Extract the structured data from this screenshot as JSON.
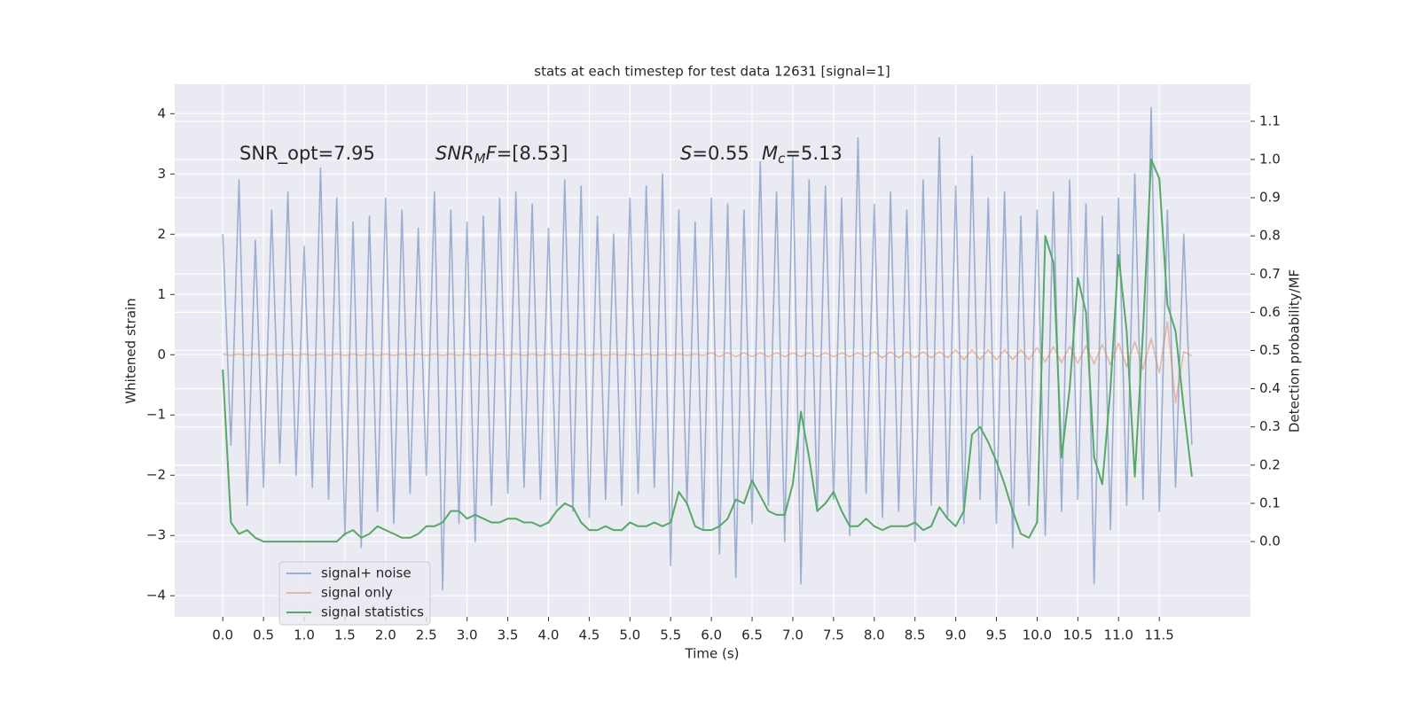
{
  "chart_data": {
    "type": "line",
    "title": "stats at each timestep for test data 12631 [signal=1]",
    "xlabel": "Time (s)",
    "ylabel": "Whitened strain",
    "y2label": "Detection probability/MF",
    "annotations": [
      [
        {
          "text": "SNR_opt=7.95",
          "style": "normal"
        }
      ],
      [
        {
          "text": "SNR",
          "style": "italic"
        },
        {
          "text": "M",
          "style": "sub"
        },
        {
          "text": "F",
          "style": "italic"
        },
        {
          "text": "=[8.53]",
          "style": "normal"
        }
      ],
      [
        {
          "text": "S",
          "style": "italic"
        },
        {
          "text": "=0.55",
          "style": "normal"
        }
      ],
      [
        {
          "text": "M",
          "style": "italic"
        },
        {
          "text": "c",
          "style": "sub"
        },
        {
          "text": "=5.13",
          "style": "normal"
        }
      ]
    ],
    "xlim": [
      -0.59,
      12.62
    ],
    "ylim": [
      -4.35,
      4.49
    ],
    "y2lim": [
      -0.197,
      1.197
    ],
    "grid": true,
    "legend": "lower left",
    "xticks": [
      {
        "value": 0,
        "label": "0.0"
      },
      0.5,
      {
        "value": 1,
        "label": "1.0"
      },
      1.5,
      {
        "value": 2,
        "label": "2.0"
      },
      2.5,
      {
        "value": 3,
        "label": "3.0"
      },
      3.5,
      {
        "value": 4,
        "label": "4.0"
      },
      4.5,
      {
        "value": 5,
        "label": "5.0"
      },
      5.5,
      {
        "value": 6,
        "label": "6.0"
      },
      6.5,
      {
        "value": 7,
        "label": "7.0"
      },
      7.5,
      {
        "value": 8,
        "label": "8.0"
      },
      8.5,
      {
        "value": 9,
        "label": "9.0"
      },
      9.5,
      {
        "value": 10,
        "label": "10.0"
      },
      10.5,
      {
        "value": 11,
        "label": "11.0"
      },
      11.5
    ],
    "yticks": [
      {
        "value": -4,
        "label": "−4"
      },
      {
        "value": -3,
        "label": "−3"
      },
      {
        "value": -2,
        "label": "−2"
      },
      {
        "value": -1,
        "label": "−1"
      },
      0,
      1,
      2,
      3,
      4
    ],
    "y2ticks": [
      {
        "value": 0,
        "label": "0.0"
      },
      0.1,
      0.2,
      0.3,
      0.4,
      0.5,
      0.6,
      0.7,
      0.8,
      0.9,
      {
        "value": 1,
        "label": "1.0"
      },
      1.1
    ],
    "x": [
      0,
      0.1,
      0.2,
      0.3,
      0.4,
      0.5,
      0.6,
      0.7,
      0.8,
      0.9,
      1,
      1.1,
      1.2,
      1.3,
      1.4,
      1.5,
      1.6,
      1.7,
      1.8,
      1.9,
      2,
      2.1,
      2.2,
      2.3,
      2.4,
      2.5,
      2.6,
      2.7,
      2.8,
      2.9,
      3,
      3.1,
      3.2,
      3.3,
      3.4,
      3.5,
      3.6,
      3.7,
      3.8,
      3.9,
      4,
      4.1,
      4.2,
      4.3,
      4.4,
      4.5,
      4.6,
      4.7,
      4.8,
      4.9,
      5,
      5.1,
      5.2,
      5.3,
      5.4,
      5.5,
      5.6,
      5.7,
      5.8,
      5.9,
      6,
      6.1,
      6.2,
      6.3,
      6.4,
      6.5,
      6.6,
      6.7,
      6.8,
      6.9,
      7,
      7.1,
      7.2,
      7.3,
      7.4,
      7.5,
      7.6,
      7.7,
      7.8,
      7.9,
      8,
      8.1,
      8.2,
      8.3,
      8.4,
      8.5,
      8.6,
      8.7,
      8.8,
      8.9,
      9,
      9.1,
      9.2,
      9.3,
      9.4,
      9.5,
      9.6,
      9.7,
      9.8,
      9.9,
      10,
      10.1,
      10.2,
      10.3,
      10.4,
      10.5,
      10.6,
      10.7,
      10.8,
      10.9,
      11,
      11.1,
      11.2,
      11.3,
      11.4,
      11.5,
      11.6,
      11.7,
      11.8,
      11.9
    ],
    "series": [
      {
        "name": "signal+ noise",
        "color": "#4c72b0",
        "axis": "y",
        "values": [
          2.0,
          -1.5,
          2.9,
          -2.5,
          1.9,
          -2.2,
          2.4,
          -1.8,
          2.7,
          -2.0,
          1.8,
          -2.2,
          3.1,
          -2.4,
          2.6,
          -3.0,
          2.2,
          -3.2,
          2.3,
          -2.6,
          2.6,
          -2.8,
          2.4,
          -2.3,
          2.1,
          -2.0,
          2.7,
          -3.9,
          2.4,
          -2.8,
          2.2,
          -3.1,
          2.3,
          -2.5,
          2.6,
          -2.3,
          2.7,
          -2.2,
          2.5,
          -2.4,
          2.1,
          -2.5,
          2.9,
          -2.6,
          2.8,
          -2.7,
          2.3,
          -2.4,
          2.0,
          -2.5,
          2.6,
          -2.3,
          2.8,
          -2.2,
          3.0,
          -3.5,
          2.4,
          -2.5,
          2.2,
          -2.9,
          2.6,
          -3.3,
          2.5,
          -3.7,
          2.4,
          -2.8,
          3.2,
          -2.5,
          2.7,
          -3.1,
          3.3,
          -3.8,
          2.9,
          -2.6,
          2.8,
          -2.4,
          2.6,
          -3.0,
          3.6,
          -2.3,
          2.5,
          -2.7,
          2.7,
          -2.6,
          2.4,
          -3.1,
          2.9,
          -2.5,
          3.6,
          -2.7,
          2.8,
          -2.8,
          3.3,
          -2.4,
          2.6,
          -2.8,
          2.7,
          -3.2,
          2.3,
          -2.5,
          2.4,
          -3.0,
          2.7,
          -2.6,
          2.9,
          -2.4,
          2.5,
          -3.8,
          2.3,
          -2.9,
          2.6,
          -2.5,
          3.0,
          -2.4,
          4.1,
          -2.6,
          2.4,
          -2.2,
          2.0,
          -1.5
        ]
      },
      {
        "name": "signal only",
        "color": "#dd8452",
        "axis": "y",
        "values": [
          0.01,
          -0.01,
          0.01,
          -0.01,
          0.01,
          -0.01,
          0.01,
          -0.01,
          0.01,
          -0.01,
          0.01,
          -0.01,
          0.01,
          -0.01,
          0.01,
          -0.01,
          0.01,
          -0.01,
          0.01,
          -0.01,
          0.01,
          -0.01,
          0.01,
          -0.01,
          0.01,
          -0.01,
          0.01,
          -0.01,
          0.01,
          -0.01,
          0.01,
          -0.01,
          0.01,
          -0.01,
          0.01,
          -0.01,
          0.01,
          -0.01,
          0.01,
          -0.01,
          0.01,
          -0.01,
          0.01,
          -0.01,
          0.01,
          -0.01,
          0.01,
          -0.01,
          0.01,
          -0.01,
          0.01,
          -0.01,
          0.01,
          -0.01,
          0.01,
          -0.01,
          0.01,
          -0.01,
          0.01,
          -0.01,
          0.03,
          -0.03,
          0.03,
          -0.03,
          0.03,
          -0.03,
          0.03,
          -0.03,
          0.03,
          -0.03,
          0.03,
          -0.03,
          0.03,
          -0.03,
          0.03,
          -0.03,
          0.03,
          -0.03,
          0.03,
          -0.03,
          0.05,
          -0.05,
          0.05,
          -0.05,
          0.05,
          -0.05,
          0.05,
          -0.05,
          0.05,
          -0.05,
          0.08,
          -0.08,
          0.08,
          -0.08,
          0.08,
          -0.08,
          0.08,
          -0.08,
          0.08,
          -0.08,
          0.12,
          -0.12,
          0.13,
          -0.13,
          0.14,
          -0.14,
          0.15,
          -0.15,
          0.17,
          -0.17,
          0.19,
          -0.2,
          0.22,
          -0.24,
          0.27,
          -0.3,
          0.55,
          -0.8,
          0.05,
          -0.02
        ]
      },
      {
        "name": "signal statistics",
        "color": "#55a868",
        "axis": "y2",
        "values": [
          0.45,
          0.05,
          0.02,
          0.03,
          0.01,
          0.0,
          0.0,
          0.0,
          0.0,
          0.0,
          0.0,
          0.0,
          0.0,
          0.0,
          0.0,
          0.02,
          0.03,
          0.01,
          0.02,
          0.04,
          0.03,
          0.02,
          0.01,
          0.01,
          0.02,
          0.04,
          0.04,
          0.05,
          0.08,
          0.08,
          0.06,
          0.07,
          0.06,
          0.05,
          0.05,
          0.06,
          0.06,
          0.05,
          0.05,
          0.04,
          0.05,
          0.08,
          0.1,
          0.09,
          0.05,
          0.03,
          0.03,
          0.04,
          0.03,
          0.03,
          0.05,
          0.04,
          0.04,
          0.05,
          0.04,
          0.05,
          0.13,
          0.1,
          0.04,
          0.03,
          0.03,
          0.04,
          0.06,
          0.11,
          0.1,
          0.16,
          0.12,
          0.08,
          0.07,
          0.07,
          0.15,
          0.34,
          0.22,
          0.08,
          0.1,
          0.13,
          0.08,
          0.04,
          0.04,
          0.06,
          0.04,
          0.03,
          0.04,
          0.04,
          0.04,
          0.05,
          0.03,
          0.04,
          0.09,
          0.06,
          0.04,
          0.08,
          0.28,
          0.3,
          0.26,
          0.21,
          0.15,
          0.08,
          0.02,
          0.01,
          0.05,
          0.8,
          0.73,
          0.22,
          0.4,
          0.69,
          0.6,
          0.22,
          0.15,
          0.4,
          0.75,
          0.55,
          0.17,
          0.55,
          1.0,
          0.95,
          0.62,
          0.55,
          0.35,
          0.17
        ]
      }
    ]
  }
}
